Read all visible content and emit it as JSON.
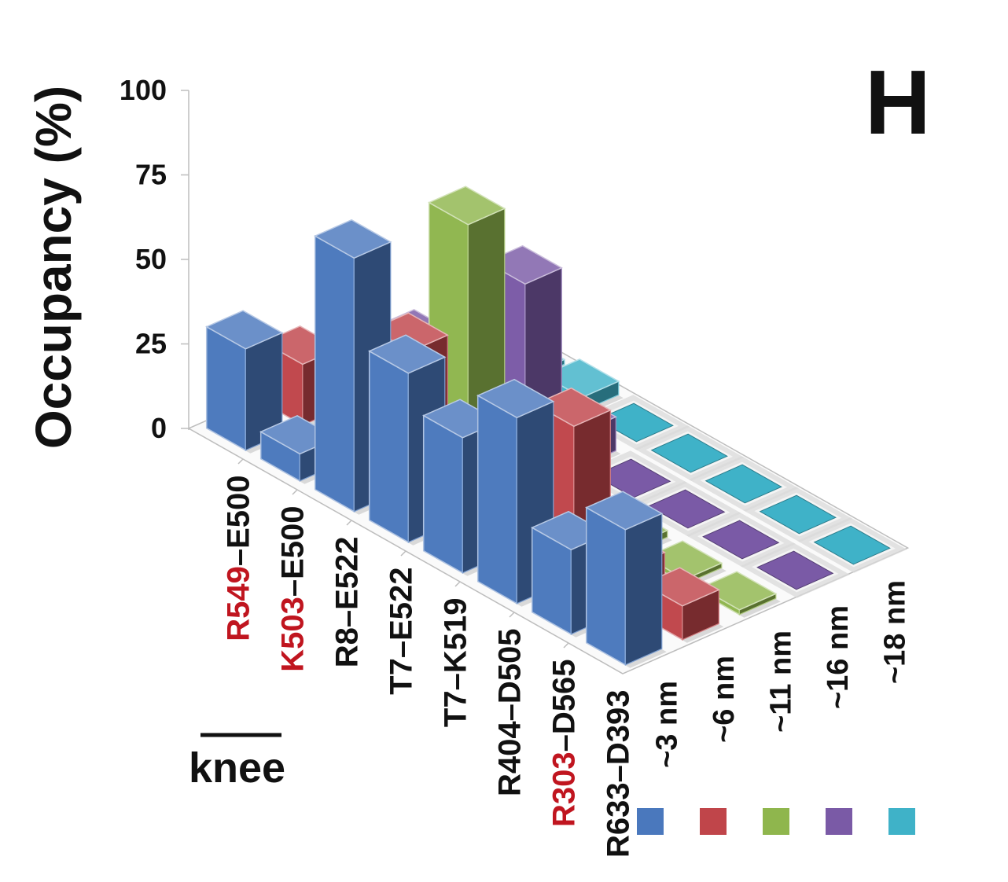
{
  "panel_letter": "H",
  "colors": {
    "~3 nm": "#4a78bd",
    "~6 nm": "#c0454a",
    "~11 nm": "#8fb64d",
    "~16 nm": "#7a5aa6",
    "~18 nm": "#3fb2c8"
  },
  "knee_label": "knee",
  "chart_data": {
    "type": "bar3d",
    "title": "",
    "ylabel": "Occupancy (%)",
    "ylim": [
      0,
      100
    ],
    "yticks": [
      0,
      25,
      50,
      75,
      100
    ],
    "grid": false,
    "legend": "bottom-right",
    "pairs": [
      {
        "label": "R549–E500",
        "parts": [
          {
            "text": "R549",
            "red": true
          },
          {
            "text": "–E500",
            "red": false
          }
        ]
      },
      {
        "label": "K503–E500",
        "parts": [
          {
            "text": "K503",
            "red": true
          },
          {
            "text": "–E500",
            "red": false
          }
        ]
      },
      {
        "label": "R8–E522",
        "parts": [
          {
            "text": "R8–E522",
            "red": false
          }
        ]
      },
      {
        "label": "T7–E522",
        "parts": [
          {
            "text": "T7–E522",
            "red": false
          }
        ]
      },
      {
        "label": "T7–K519",
        "parts": [
          {
            "text": "T7–K519",
            "red": false
          }
        ]
      },
      {
        "label": "R404–D505",
        "parts": [
          {
            "text": "R404–D505",
            "red": false
          }
        ]
      },
      {
        "label": "R303–D565",
        "parts": [
          {
            "text": "R303",
            "red": true
          },
          {
            "text": "–D565",
            "red": false
          }
        ]
      },
      {
        "label": "R633–D393",
        "parts": [
          {
            "text": "R633–D393",
            "red": false
          }
        ]
      }
    ],
    "series": [
      {
        "name": "~3 nm",
        "values": [
          30,
          8,
          75,
          50,
          40,
          55,
          25,
          40
        ]
      },
      {
        "name": "~6 nm",
        "values": [
          18,
          5,
          40,
          1,
          3,
          45,
          12,
          10
        ]
      },
      {
        "name": "~11 nm",
        "values": [
          2,
          1,
          70,
          20,
          0,
          2,
          1,
          1
        ]
      },
      {
        "name": "~16 nm",
        "values": [
          8,
          2,
          45,
          10,
          0,
          0,
          0,
          0
        ]
      },
      {
        "name": "~18 nm",
        "values": [
          3,
          1,
          4,
          0,
          0,
          0,
          0,
          0
        ]
      }
    ]
  }
}
